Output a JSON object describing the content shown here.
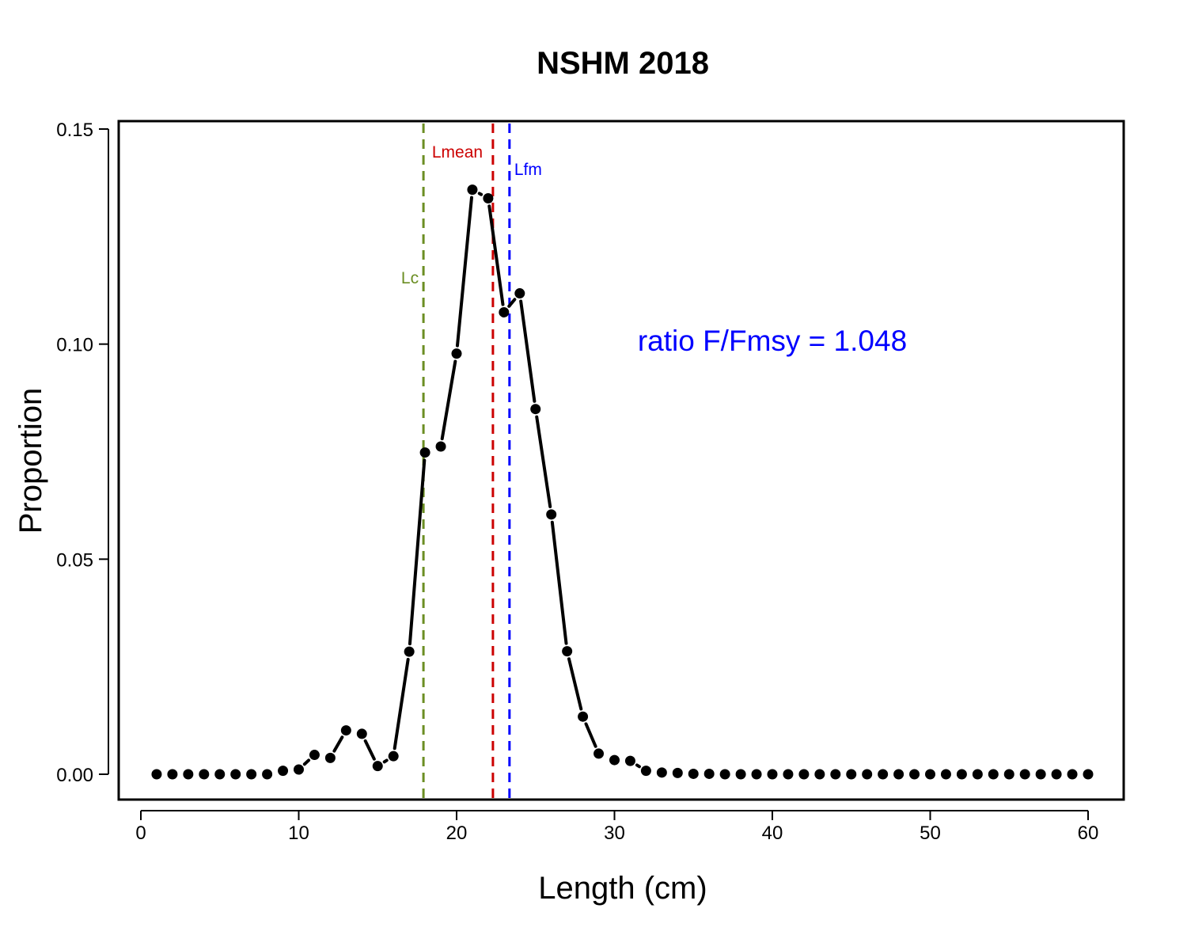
{
  "chart_data": {
    "type": "line",
    "title": "NSHM 2018",
    "xlabel": "Length (cm)",
    "ylabel": "Proportion",
    "xlim": [
      0,
      61
    ],
    "ylim": [
      -0.006,
      0.151
    ],
    "xticks": [
      0,
      10,
      20,
      30,
      40,
      50,
      60
    ],
    "xtick_labels": [
      "0",
      "10",
      "20",
      "30",
      "40",
      "50",
      "60"
    ],
    "yticks": [
      0.0,
      0.05,
      0.1,
      0.15
    ],
    "ytick_labels": [
      "0.00",
      "0.05",
      "0.10",
      "0.15"
    ],
    "grid": false,
    "legend": "none",
    "series": [
      {
        "x": [
          1,
          2,
          3,
          4,
          5,
          6,
          7,
          8,
          9,
          10,
          11,
          12,
          13,
          14,
          15,
          16,
          17,
          18,
          19,
          20,
          21,
          22,
          23,
          24,
          25,
          26,
          27,
          28,
          29,
          30,
          31,
          32,
          33,
          34,
          35,
          36,
          37,
          38,
          39,
          40,
          41,
          42,
          43,
          44,
          45,
          46,
          47,
          48,
          49,
          50,
          51,
          52,
          53,
          54,
          55,
          56,
          57,
          58,
          59,
          60
        ],
        "values": [
          0,
          0,
          0,
          0,
          0,
          0,
          0,
          0,
          0.0008,
          0.0011,
          0.0045,
          0.0038,
          0.0102,
          0.0094,
          0.0019,
          0.0042,
          0.0285,
          0.0748,
          0.0762,
          0.0978,
          0.1359,
          0.1339,
          0.1074,
          0.1118,
          0.0849,
          0.0604,
          0.0286,
          0.0134,
          0.0048,
          0.0033,
          0.0031,
          0.0008,
          0.0004,
          0.0003,
          0.0001,
          0.0001,
          0,
          0,
          0,
          0,
          0,
          0,
          0,
          0,
          0,
          0,
          0,
          0,
          0,
          0,
          0,
          0,
          0,
          0,
          0,
          0,
          0,
          0,
          0,
          0
        ],
        "color": "#000000"
      }
    ],
    "reference_lines": [
      {
        "label": "Lc",
        "x": 17.9,
        "color": "#6B8E23"
      },
      {
        "label": "Lmean",
        "x": 22.3,
        "color": "#CC0000"
      },
      {
        "label": "Lfm",
        "x": 23.35,
        "color": "#0000FF"
      }
    ],
    "annotation": {
      "text": "ratio F/Fmsy = 1.048",
      "color": "#0000FF"
    }
  }
}
